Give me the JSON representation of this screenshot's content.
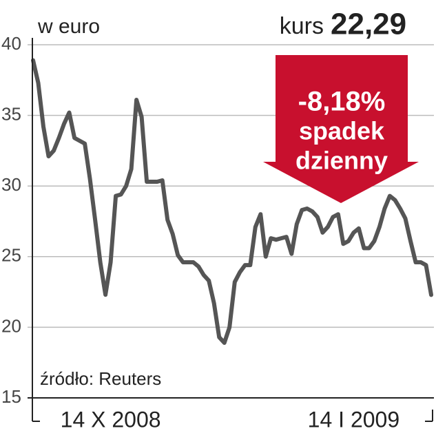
{
  "chart_data": {
    "type": "line",
    "title": "w euro",
    "price_label": "kurs",
    "price_value": "22,29",
    "change_label": "-8,18%",
    "change_text_1": "spadek",
    "change_text_2": "dzienny",
    "source": "źródło: Reuters",
    "categories": [
      null,
      null,
      null,
      null,
      null,
      null,
      null,
      null,
      null,
      null,
      null,
      null,
      null,
      null,
      null,
      "14 X 2008",
      null,
      null,
      null,
      null,
      null,
      null,
      null,
      null,
      null,
      null,
      null,
      null,
      null,
      null,
      null,
      null,
      null,
      null,
      null,
      null,
      null,
      null,
      null,
      null,
      null,
      null,
      null,
      null,
      null,
      null,
      null,
      null,
      null,
      null,
      null,
      null,
      null,
      null,
      null,
      null,
      null,
      null,
      null,
      null,
      null,
      null,
      "14 I 2009",
      null,
      null,
      null,
      null,
      null,
      null,
      null,
      null,
      null,
      null,
      null,
      null,
      null,
      null,
      null
    ],
    "series": [
      {
        "name": "kurs",
        "color": "#555555",
        "values": [
          38.9,
          37.3,
          34.2,
          32.1,
          32.5,
          33.4,
          34.4,
          35.2,
          33.4,
          33.2,
          33.0,
          30.5,
          27.6,
          24.6,
          22.3,
          24.6,
          29.3,
          29.4,
          30.0,
          31.2,
          36.1,
          34.9,
          30.3,
          30.3,
          30.3,
          30.4,
          27.6,
          26.6,
          25.1,
          24.6,
          24.6,
          24.6,
          24.3,
          23.7,
          23.3,
          21.7,
          19.3,
          18.9,
          20.0,
          23.2,
          23.9,
          24.4,
          24.4,
          27.1,
          28.0,
          25.0,
          26.3,
          26.2,
          26.3,
          26.4,
          25.2,
          27.3,
          28.3,
          28.4,
          28.2,
          27.8,
          26.7,
          27.1,
          27.8,
          28.0,
          25.9,
          26.1,
          26.7,
          27.0,
          25.6,
          25.6,
          26.1,
          27.1,
          28.4,
          29.3,
          29.0,
          28.4,
          27.7,
          26.1,
          24.6,
          24.6,
          24.4,
          22.29
        ]
      }
    ],
    "ylim": [
      15,
      40
    ],
    "yticks": [
      15,
      20,
      25,
      30,
      35,
      40
    ],
    "grid": true,
    "accent_color": "#c8102e"
  }
}
